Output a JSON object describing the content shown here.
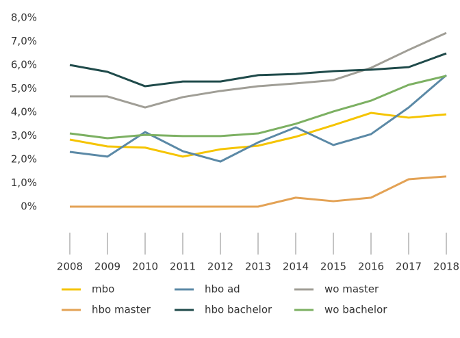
{
  "chart_data": {
    "type": "line",
    "categories": [
      "2008",
      "2009",
      "2010",
      "2011",
      "2012",
      "2013",
      "2014",
      "2015",
      "2016",
      "2017",
      "2018"
    ],
    "series": [
      {
        "name": "mbo",
        "color": "#f5c400",
        "values": [
          2.84,
          2.55,
          2.5,
          2.12,
          2.43,
          2.58,
          2.96,
          3.45,
          3.97,
          3.77,
          3.91
        ]
      },
      {
        "name": "hbo ad",
        "color": "#5b89a6",
        "values": [
          2.32,
          2.12,
          3.16,
          2.35,
          1.91,
          2.72,
          3.36,
          2.61,
          3.07,
          4.2,
          5.57
        ]
      },
      {
        "name": "wo master",
        "color": "#a09e96",
        "values": [
          4.67,
          4.67,
          4.2,
          4.64,
          4.9,
          5.1,
          5.22,
          5.36,
          5.88,
          6.64,
          7.36
        ]
      },
      {
        "name": "hbo master",
        "color": "#e3a255",
        "values": [
          0,
          0,
          0,
          0,
          0,
          0,
          0.38,
          0.23,
          0.38,
          1.16,
          1.28
        ]
      },
      {
        "name": "hbo bachelor",
        "color": "#1f4a4a",
        "values": [
          6.0,
          5.71,
          5.1,
          5.3,
          5.3,
          5.57,
          5.62,
          5.74,
          5.8,
          5.91,
          6.49
        ]
      },
      {
        "name": "wo bachelor",
        "color": "#7cb062",
        "values": [
          3.1,
          2.9,
          3.04,
          2.99,
          2.99,
          3.1,
          3.51,
          4.03,
          4.49,
          5.16,
          5.54
        ]
      }
    ],
    "ylim": [
      0,
      8
    ],
    "yticks": [
      {
        "value": 0,
        "label": "0%"
      },
      {
        "value": 1,
        "label": "1,0%"
      },
      {
        "value": 2,
        "label": "2,0%"
      },
      {
        "value": 3,
        "label": "3,0%"
      },
      {
        "value": 4,
        "label": "4,0%"
      },
      {
        "value": 5,
        "label": "5,0%"
      },
      {
        "value": 6,
        "label": "6,0%"
      },
      {
        "value": 7,
        "label": "7,0%"
      },
      {
        "value": 8,
        "label": "8,0%"
      }
    ],
    "grid": false
  }
}
